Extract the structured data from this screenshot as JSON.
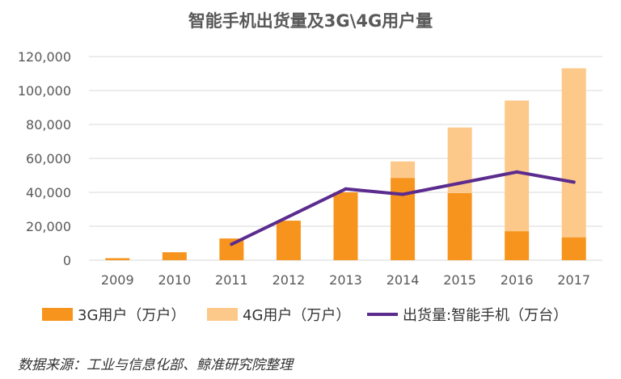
{
  "chart_data": {
    "type": "bar",
    "title": "智能手机出货量及3G\\4G用户量",
    "categories": [
      "2009",
      "2010",
      "2011",
      "2012",
      "2013",
      "2014",
      "2015",
      "2016",
      "2017"
    ],
    "series": [
      {
        "name": "3G用户（万户）",
        "type": "bar",
        "stacked": true,
        "color": "#F7941D",
        "values": [
          1200,
          4700,
          12800,
          23300,
          40000,
          48500,
          39600,
          17100,
          13500
        ]
      },
      {
        "name": "4G用户（万户）",
        "type": "bar",
        "stacked": true,
        "color": "#FCC98A",
        "values": [
          0,
          0,
          0,
          0,
          0,
          9700,
          38600,
          77000,
          99600
        ]
      },
      {
        "name": "出货量:智能手机（万台）",
        "type": "line",
        "color": "#5B2C8E",
        "values": [
          null,
          null,
          9400,
          null,
          42000,
          38800,
          null,
          52000,
          46000
        ]
      }
    ],
    "ylim": [
      0,
      120000
    ],
    "yticks": [
      "0",
      "20,000",
      "40,000",
      "60,000",
      "80,000",
      "100,000",
      "120,000"
    ],
    "xlabel": "",
    "ylabel": "",
    "grid": true,
    "legend_position": "bottom"
  },
  "source": "数据来源：工业与信息化部、鲸准研究院整理"
}
